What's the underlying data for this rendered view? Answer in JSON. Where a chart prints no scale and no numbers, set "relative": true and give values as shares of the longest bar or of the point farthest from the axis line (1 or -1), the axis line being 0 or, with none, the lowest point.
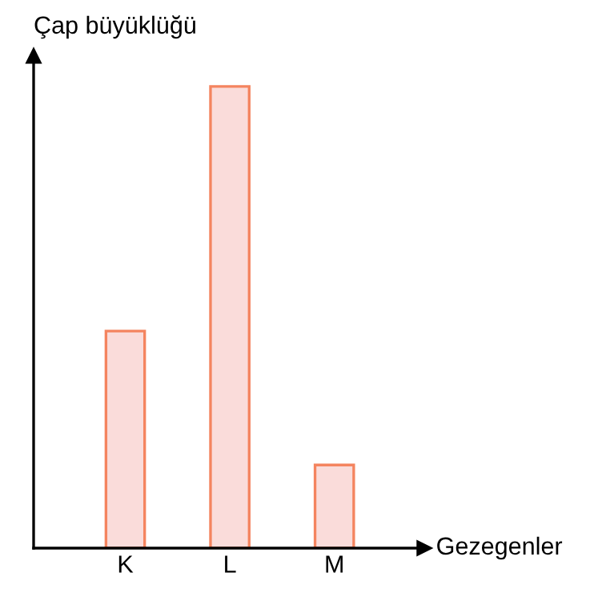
{
  "chart_data": {
    "type": "bar",
    "xlabel": "Gezegenler",
    "ylabel": "Çap büyüklüğü",
    "categories": [
      "K",
      "L",
      "M"
    ],
    "values": [
      0.47,
      1,
      0.18
    ],
    "color": "#fadcda",
    "relative": true,
    "grid": false,
    "legend": false
  }
}
